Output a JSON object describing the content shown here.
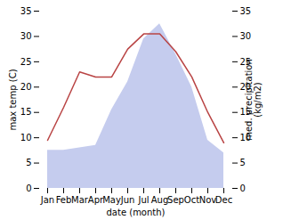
{
  "chart_data": {
    "type": "line",
    "xlabel": "date (month)",
    "ylabel": "max temp (C)",
    "y2label": "med. precipitation\n(kg/m2)",
    "categories": [
      "Jan",
      "Feb",
      "Mar",
      "Apr",
      "May",
      "Jun",
      "Jul",
      "Aug",
      "Sep",
      "Oct",
      "Nov",
      "Dec"
    ],
    "series": [
      {
        "type": "area",
        "axis": "y2",
        "color": "#c5ccee",
        "values": [
          7.5,
          7.5,
          8.0,
          8.5,
          15.5,
          21.0,
          29.5,
          32.5,
          26.5,
          20.0,
          9.5,
          7.0
        ]
      },
      {
        "type": "line",
        "color": "#b94444",
        "values": [
          9.5,
          16.0,
          23.0,
          22.0,
          22.0,
          27.5,
          30.5,
          30.5,
          27.0,
          22.0,
          15.0,
          9.0
        ]
      }
    ],
    "ylim": [
      0,
      35
    ],
    "yticks": [
      0,
      5,
      10,
      15,
      20,
      25,
      30,
      35
    ],
    "y2lim": [
      0,
      35
    ],
    "y2ticks": [
      0,
      5,
      10,
      15,
      20,
      25,
      30,
      35
    ],
    "grid": false
  }
}
